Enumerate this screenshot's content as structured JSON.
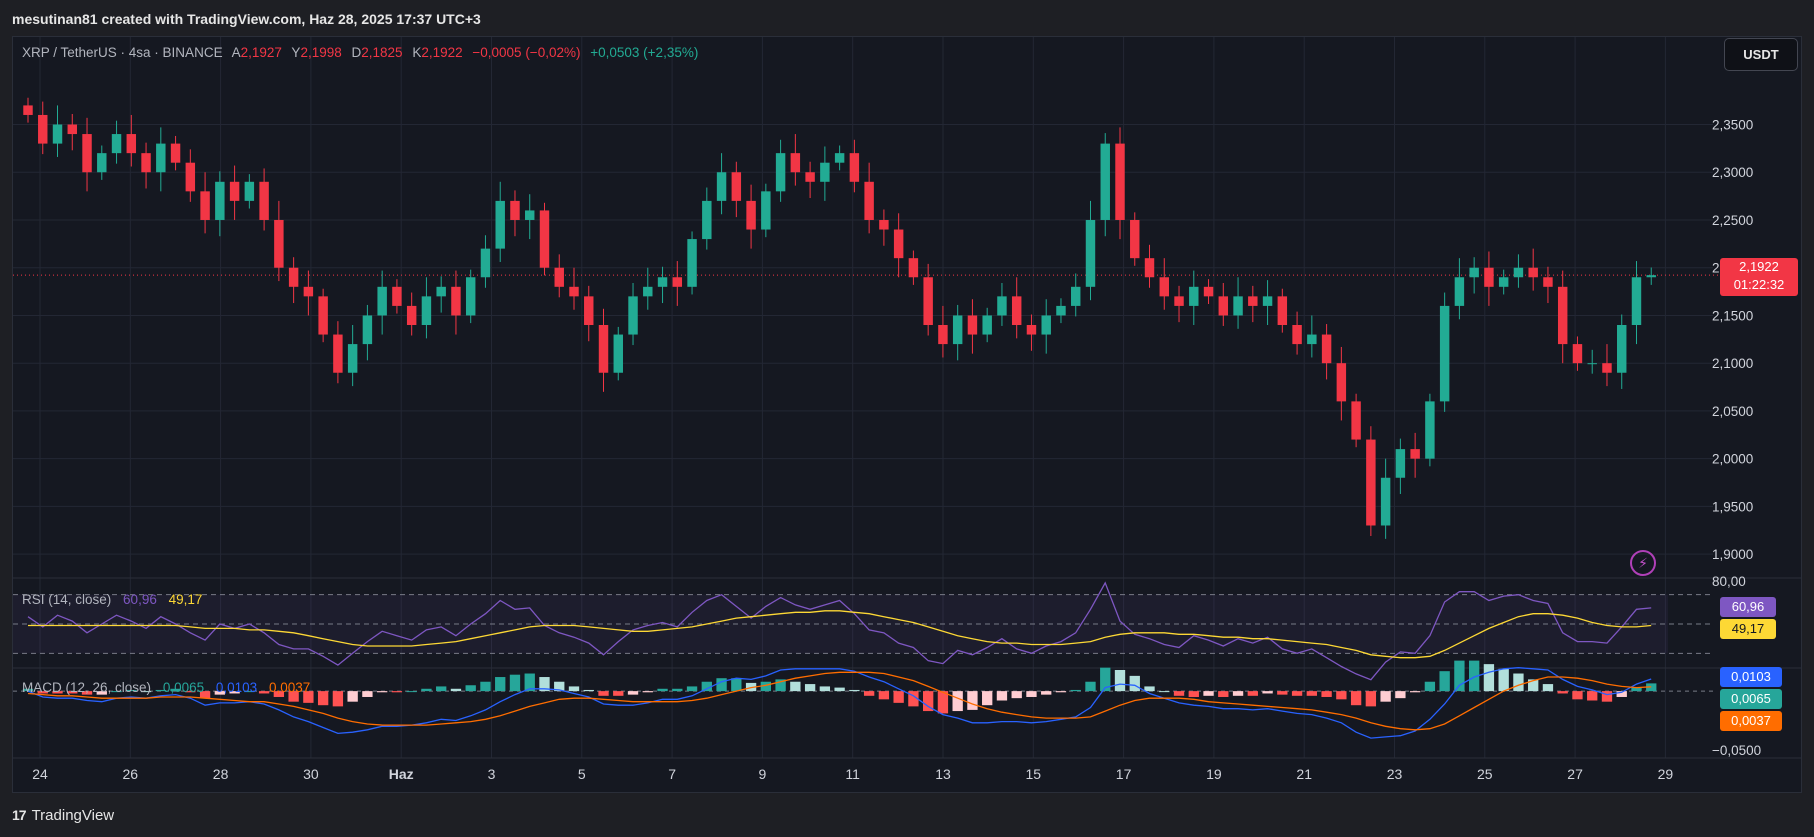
{
  "header": {
    "text": "mesutinan81 created with TradingView.com, Haz 28, 2025 17:37 UTC+3"
  },
  "legend": {
    "symbol": "XRP / TetherUS · 4sa · BINANCE",
    "open_label": "A",
    "open": "2,1927",
    "high_label": "Y",
    "high": "2,1998",
    "low_label": "D",
    "low": "2,1825",
    "close_label": "K",
    "close": "2,1922",
    "change": "−0,0005 (−0,02%)",
    "change2": "+0,0503 (+2,35%)"
  },
  "currency_button": "USDT",
  "price_badge": {
    "price": "2,1922",
    "countdown": "01:22:32"
  },
  "rsi_legend": {
    "label": "RSI (14, close)",
    "rsi": "60,96",
    "ma": "49,17"
  },
  "macd_legend": {
    "label": "MACD (12, 26, close)",
    "hist": "0,0065",
    "macd": "0,0103",
    "signal": "0,0037"
  },
  "footer": {
    "brand": "TradingView",
    "logo_text": "17"
  },
  "alert_icon": "lightning-icon",
  "colors": {
    "up": "#22ab94",
    "down": "#f23645",
    "rsi": "#7e57c2",
    "rsi_ma": "#fdd835",
    "macd": "#2962ff",
    "signal": "#ff6d00",
    "background": "#151821"
  },
  "chart_data": [
    {
      "type": "candlestick",
      "title": "XRP / TetherUS · 4sa · BINANCE",
      "ylim": [
        1.875,
        2.405
      ],
      "y_ticks": [
        "2,3500",
        "2,3000",
        "2,2500",
        "2,2000",
        "2,1500",
        "2,1000",
        "2,0500",
        "2,0000",
        "1,9500",
        "1,9000"
      ],
      "y_tick_values": [
        2.35,
        2.3,
        2.25,
        2.2,
        2.15,
        2.1,
        2.05,
        2.0,
        1.95,
        1.9
      ],
      "x_ticks": [
        "24",
        "26",
        "28",
        "30",
        "Haz",
        "3",
        "5",
        "7",
        "9",
        "11",
        "13",
        "15",
        "17",
        "19",
        "21",
        "23",
        "25",
        "27",
        "29"
      ],
      "current_price": 2.1922,
      "candles_per_day": 6,
      "close_path": [
        2.36,
        2.33,
        2.35,
        2.34,
        2.3,
        2.32,
        2.34,
        2.32,
        2.3,
        2.33,
        2.31,
        2.28,
        2.25,
        2.29,
        2.27,
        2.29,
        2.25,
        2.2,
        2.18,
        2.17,
        2.13,
        2.09,
        2.12,
        2.15,
        2.18,
        2.16,
        2.14,
        2.17,
        2.18,
        2.15,
        2.19,
        2.22,
        2.27,
        2.25,
        2.26,
        2.2,
        2.18,
        2.17,
        2.14,
        2.09,
        2.13,
        2.17,
        2.18,
        2.19,
        2.18,
        2.23,
        2.27,
        2.3,
        2.27,
        2.24,
        2.28,
        2.32,
        2.3,
        2.29,
        2.31,
        2.32,
        2.29,
        2.25,
        2.24,
        2.21,
        2.19,
        2.14,
        2.12,
        2.15,
        2.13,
        2.15,
        2.17,
        2.14,
        2.13,
        2.15,
        2.16,
        2.18,
        2.25,
        2.33,
        2.25,
        2.21,
        2.19,
        2.17,
        2.16,
        2.18,
        2.17,
        2.15,
        2.17,
        2.16,
        2.17,
        2.14,
        2.12,
        2.13,
        2.1,
        2.06,
        2.02,
        1.93,
        1.98,
        2.01,
        2.0,
        2.06,
        2.16,
        2.19,
        2.2,
        2.18,
        2.19,
        2.2,
        2.19,
        2.18,
        2.12,
        2.1,
        2.1,
        2.09,
        2.14,
        2.19,
        2.1922
      ]
    },
    {
      "type": "line",
      "title": "RSI (14, close)",
      "ylim": [
        20,
        80
      ],
      "y_ticks": [
        "80,00"
      ],
      "bands": [
        70,
        50,
        30
      ],
      "series": [
        {
          "name": "RSI",
          "values": [
            55,
            48,
            56,
            52,
            44,
            50,
            56,
            52,
            47,
            55,
            50,
            44,
            39,
            50,
            47,
            50,
            44,
            36,
            33,
            33,
            28,
            22,
            30,
            38,
            45,
            42,
            39,
            46,
            48,
            42,
            50,
            57,
            66,
            60,
            61,
            49,
            44,
            41,
            37,
            29,
            38,
            46,
            49,
            51,
            48,
            58,
            66,
            70,
            62,
            54,
            62,
            68,
            63,
            60,
            63,
            66,
            57,
            46,
            44,
            37,
            34,
            25,
            23,
            32,
            29,
            34,
            40,
            33,
            30,
            35,
            38,
            44,
            60,
            78,
            52,
            43,
            40,
            36,
            34,
            42,
            39,
            35,
            40,
            37,
            41,
            33,
            30,
            33,
            27,
            21,
            16,
            12,
            24,
            31,
            30,
            42,
            65,
            72,
            72,
            66,
            69,
            70,
            66,
            64,
            44,
            38,
            38,
            37,
            48,
            60,
            61
          ]
        },
        {
          "name": "MA",
          "values": [
            49,
            49,
            49,
            49,
            49,
            49,
            49,
            49,
            49,
            49,
            49,
            48,
            47,
            47,
            47,
            46,
            46,
            45,
            44,
            42,
            40,
            38,
            36,
            35,
            35,
            35,
            35,
            36,
            37,
            38,
            40,
            42,
            44,
            46,
            48,
            49,
            49,
            49,
            48,
            47,
            46,
            45,
            45,
            46,
            47,
            48,
            50,
            52,
            54,
            55,
            56,
            57,
            58,
            58,
            59,
            59,
            58,
            57,
            55,
            53,
            51,
            48,
            45,
            42,
            40,
            38,
            37,
            37,
            36,
            36,
            36,
            37,
            38,
            41,
            43,
            44,
            44,
            44,
            43,
            43,
            42,
            41,
            41,
            40,
            40,
            39,
            38,
            37,
            36,
            34,
            32,
            29,
            28,
            27,
            27,
            28,
            32,
            37,
            42,
            47,
            51,
            55,
            57,
            57,
            56,
            54,
            51,
            49,
            48,
            48,
            49
          ]
        }
      ]
    },
    {
      "type": "bar",
      "title": "MACD (12, 26, close)",
      "ylim": [
        -0.057,
        0.018
      ],
      "y_ticks": [
        "−0,0500"
      ],
      "series": [
        {
          "name": "MACD",
          "values": [
            0.0,
            -0.005,
            -0.006,
            -0.006,
            -0.008,
            -0.009,
            -0.006,
            -0.005,
            -0.006,
            -0.004,
            -0.003,
            -0.006,
            -0.012,
            -0.01,
            -0.01,
            -0.009,
            -0.011,
            -0.016,
            -0.022,
            -0.026,
            -0.031,
            -0.036,
            -0.035,
            -0.033,
            -0.03,
            -0.03,
            -0.029,
            -0.027,
            -0.024,
            -0.025,
            -0.021,
            -0.016,
            -0.009,
            -0.003,
            0.002,
            0.002,
            0.001,
            -0.002,
            -0.005,
            -0.011,
            -0.012,
            -0.012,
            -0.01,
            -0.007,
            -0.007,
            -0.004,
            0.002,
            0.008,
            0.011,
            0.01,
            0.013,
            0.018,
            0.019,
            0.019,
            0.019,
            0.019,
            0.017,
            0.012,
            0.008,
            0.002,
            -0.004,
            -0.013,
            -0.02,
            -0.023,
            -0.027,
            -0.027,
            -0.026,
            -0.026,
            -0.027,
            -0.026,
            -0.024,
            -0.022,
            -0.014,
            0.003,
            0.006,
            0.005,
            -0.002,
            -0.006,
            -0.01,
            -0.012,
            -0.013,
            -0.015,
            -0.015,
            -0.016,
            -0.015,
            -0.017,
            -0.019,
            -0.02,
            -0.023,
            -0.027,
            -0.035,
            -0.04,
            -0.039,
            -0.038,
            -0.034,
            -0.024,
            -0.011,
            0.005,
            0.012,
            0.016,
            0.019,
            0.02,
            0.019,
            0.018,
            0.01,
            0.004,
            0.001,
            -0.003,
            -0.001,
            0.006,
            0.0103
          ]
        },
        {
          "name": "Signal",
          "values": [
            -0.002,
            -0.003,
            -0.004,
            -0.004,
            -0.005,
            -0.006,
            -0.006,
            -0.006,
            -0.006,
            -0.005,
            -0.005,
            -0.005,
            -0.006,
            -0.007,
            -0.008,
            -0.009,
            -0.009,
            -0.011,
            -0.013,
            -0.016,
            -0.019,
            -0.023,
            -0.026,
            -0.028,
            -0.029,
            -0.029,
            -0.029,
            -0.029,
            -0.028,
            -0.027,
            -0.026,
            -0.024,
            -0.021,
            -0.017,
            -0.013,
            -0.01,
            -0.007,
            -0.006,
            -0.006,
            -0.007,
            -0.008,
            -0.009,
            -0.009,
            -0.009,
            -0.009,
            -0.008,
            -0.006,
            -0.003,
            0.0,
            0.003,
            0.005,
            0.008,
            0.011,
            0.013,
            0.015,
            0.016,
            0.016,
            0.016,
            0.015,
            0.012,
            0.009,
            0.004,
            -0.001,
            -0.006,
            -0.011,
            -0.015,
            -0.018,
            -0.02,
            -0.022,
            -0.023,
            -0.023,
            -0.023,
            -0.022,
            -0.017,
            -0.012,
            -0.008,
            -0.006,
            -0.006,
            -0.006,
            -0.007,
            -0.009,
            -0.01,
            -0.011,
            -0.012,
            -0.013,
            -0.014,
            -0.015,
            -0.016,
            -0.018,
            -0.02,
            -0.023,
            -0.027,
            -0.03,
            -0.032,
            -0.033,
            -0.032,
            -0.028,
            -0.021,
            -0.014,
            -0.007,
            0.0,
            0.005,
            0.009,
            0.012,
            0.012,
            0.011,
            0.009,
            0.006,
            0.004,
            0.003,
            0.0037
          ]
        }
      ]
    }
  ]
}
